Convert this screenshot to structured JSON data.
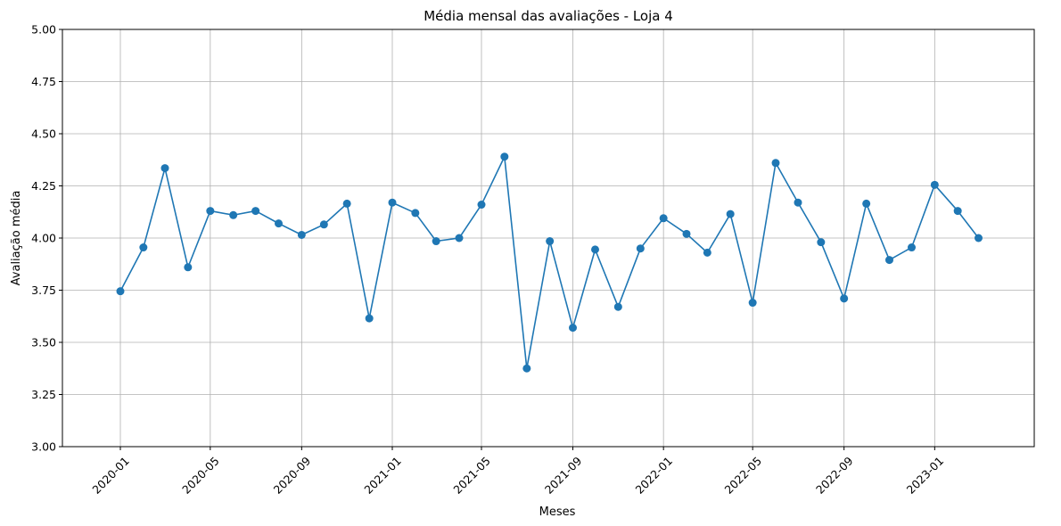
{
  "chart_data": {
    "type": "line",
    "title": "Média mensal das avaliações - Loja 4",
    "xlabel": "Meses",
    "ylabel": "Avaliação média",
    "ylim": [
      3.0,
      5.0
    ],
    "xlim": [
      "2019-10-15",
      "2023-05-15"
    ],
    "grid": true,
    "color": "#1f77b4",
    "marker": "circle",
    "x_tick_labels": [
      "2020-01",
      "2020-05",
      "2020-09",
      "2021-01",
      "2021-05",
      "2021-09",
      "2022-01",
      "2022-05",
      "2022-09",
      "2023-01"
    ],
    "y_tick_labels": [
      "3.00",
      "3.25",
      "3.50",
      "3.75",
      "4.00",
      "4.25",
      "4.50",
      "4.75",
      "5.00"
    ],
    "y_ticks": [
      3.0,
      3.25,
      3.5,
      3.75,
      4.0,
      4.25,
      4.5,
      4.75,
      5.0
    ],
    "x": [
      "2020-01",
      "2020-02",
      "2020-03",
      "2020-04",
      "2020-05",
      "2020-06",
      "2020-07",
      "2020-08",
      "2020-09",
      "2020-10",
      "2020-11",
      "2020-12",
      "2021-01",
      "2021-02",
      "2021-03",
      "2021-04",
      "2021-05",
      "2021-06",
      "2021-07",
      "2021-08",
      "2021-09",
      "2021-10",
      "2021-11",
      "2021-12",
      "2022-01",
      "2022-02",
      "2022-03",
      "2022-04",
      "2022-05",
      "2022-06",
      "2022-07",
      "2022-08",
      "2022-09",
      "2022-10",
      "2022-11",
      "2022-12",
      "2023-01",
      "2023-02",
      "2023-03"
    ],
    "values": [
      3.745,
      3.955,
      4.335,
      3.86,
      4.13,
      4.11,
      4.13,
      4.07,
      4.015,
      4.065,
      4.165,
      3.615,
      4.17,
      4.12,
      3.985,
      4.0,
      4.16,
      4.39,
      3.375,
      3.985,
      3.57,
      3.945,
      3.67,
      3.95,
      4.095,
      4.02,
      3.93,
      4.115,
      3.69,
      4.36,
      4.17,
      3.98,
      3.71,
      4.165,
      3.895,
      3.955,
      4.255,
      4.13,
      4.0
    ]
  }
}
